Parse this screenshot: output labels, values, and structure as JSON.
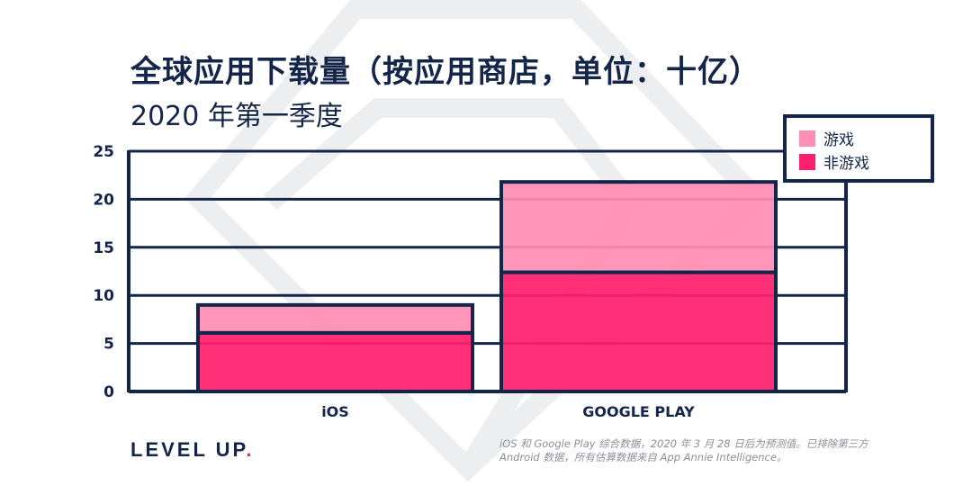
{
  "title": "全球应用下载量（按应用商店，单位：十亿）",
  "subtitle": "2020 年第一季度",
  "brand": {
    "text": "LEVEL UP",
    "dot": "."
  },
  "footnote": [
    "iOS 和 Google Play 综合数据，2020 年 3 月 28 日后为预测值。已排除第三方",
    "Android 数据，所有估算数据来自 App Annie Intelligence。"
  ],
  "colors": {
    "games": "#ff8db4",
    "non_games": "#ff1f6e",
    "outline": "#14254a",
    "watermark": "#eceef0"
  },
  "chart_data": {
    "type": "bar",
    "stacked": true,
    "categories": [
      "iOS",
      "GOOGLE PLAY"
    ],
    "series": [
      {
        "name": "非游戏",
        "values": [
          6.1,
          12.4
        ],
        "color": "#ff1f6e"
      },
      {
        "name": "游戏",
        "values": [
          2.9,
          9.4
        ],
        "color": "#ff8db4"
      }
    ],
    "legend": [
      "游戏",
      "非游戏"
    ],
    "legend_placement": "top-right",
    "yticks": [
      0,
      5,
      10,
      15,
      20,
      25
    ],
    "ylim": [
      0,
      25
    ],
    "grid": true
  }
}
